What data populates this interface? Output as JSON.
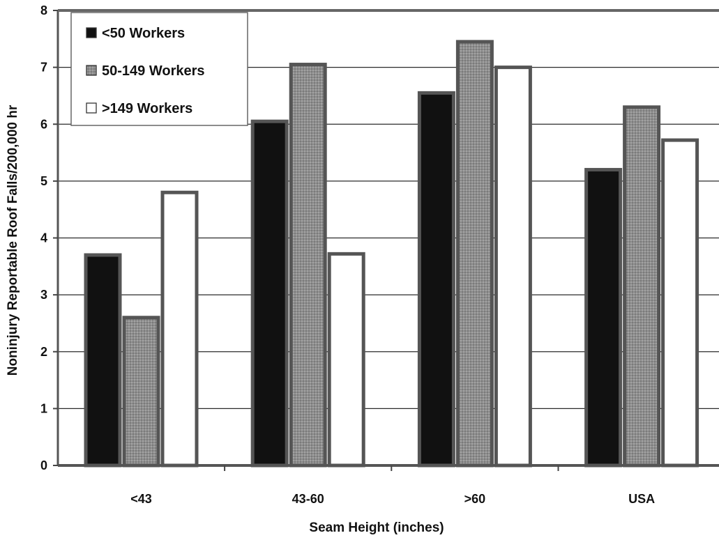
{
  "chart_data": {
    "type": "bar",
    "title": "",
    "xlabel": "Seam Height (inches)",
    "ylabel": "Noninjury Reportable Roof Falls/200,000 hr",
    "ylim": [
      0,
      8
    ],
    "yticks": [
      "0",
      "1",
      "2",
      "3",
      "4",
      "5",
      "6",
      "7",
      "8"
    ],
    "categories": [
      "<43",
      "43-60",
      ">60",
      "USA"
    ],
    "series": [
      {
        "name": "<50 Workers",
        "color": "#111111",
        "values": [
          3.7,
          6.05,
          6.55,
          5.2
        ]
      },
      {
        "name": "50-149 Workers",
        "color": "#8c8c8c",
        "values": [
          2.6,
          7.05,
          7.45,
          6.3
        ]
      },
      {
        "name": ">149 Workers",
        "color": "#ffffff",
        "values": [
          4.8,
          3.72,
          7.0,
          5.72
        ]
      }
    ],
    "grid": true,
    "legend_position": "top-left"
  }
}
